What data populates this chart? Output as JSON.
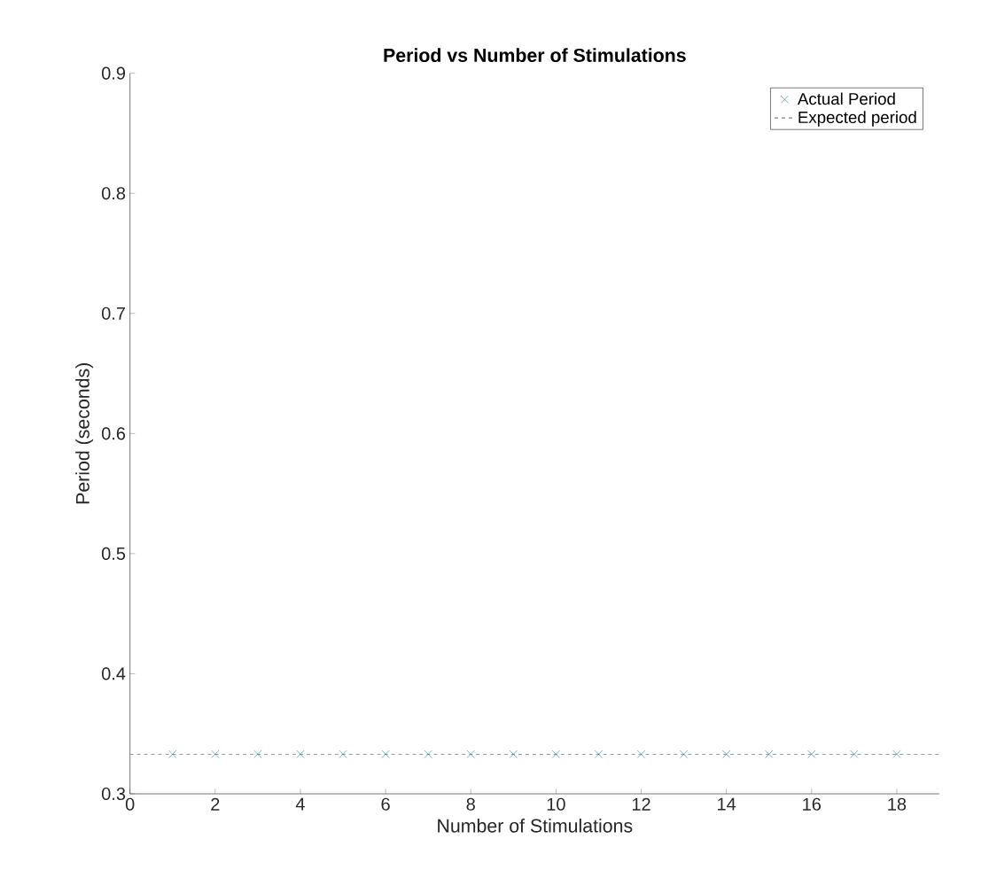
{
  "chart_data": {
    "type": "scatter",
    "title": "Period vs Number of Stimulations",
    "xlabel": "Number of Stimulations",
    "ylabel": "Period (seconds)",
    "x": [
      1,
      2,
      3,
      4,
      5,
      6,
      7,
      8,
      9,
      10,
      11,
      12,
      13,
      14,
      15,
      16,
      17,
      18
    ],
    "series": [
      {
        "name": "Actual Period",
        "color": "#0072bd",
        "values": [
          0.333,
          0.333,
          0.333,
          0.333,
          0.333,
          0.333,
          0.333,
          0.333,
          0.333,
          0.333,
          0.333,
          0.333,
          0.333,
          0.333,
          0.333,
          0.333,
          0.333,
          0.333
        ]
      }
    ],
    "ref_lines": [
      {
        "axis": "y",
        "value": 0.333,
        "label": "Expected period",
        "color": "#808080",
        "line_style": "dashed"
      }
    ],
    "marker": "cross",
    "legend": "top right",
    "grid": false,
    "xlim": [
      0,
      19
    ],
    "xticks": [
      0,
      2,
      4,
      6,
      8,
      10,
      12,
      14,
      16,
      18
    ],
    "ylim": [
      0.3,
      0.9
    ],
    "yticks": [
      0.3,
      0.4,
      0.5,
      0.6,
      0.7,
      0.8,
      0.9
    ]
  }
}
